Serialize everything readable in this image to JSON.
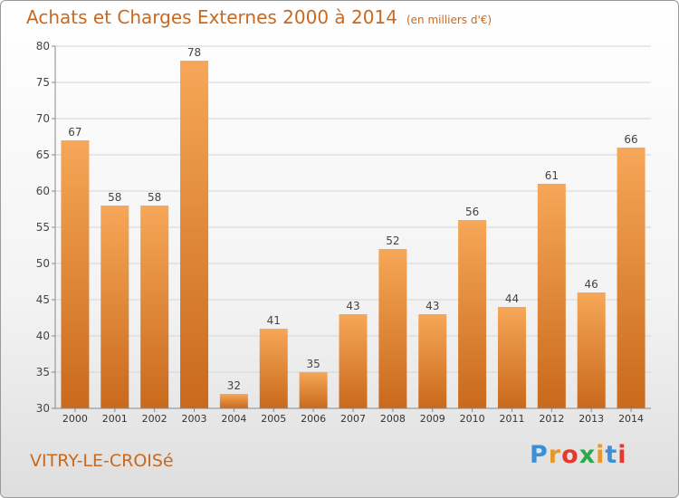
{
  "title": "Achats et Charges Externes 2000 à 2014",
  "unit_note": "(en milliers d'€)",
  "commune": "VITRY-LE-CROISé",
  "logo": {
    "letters": [
      "P",
      "r",
      "o",
      "x",
      "i",
      "t",
      "i"
    ],
    "colors": [
      "#3a8fd6",
      "#e8982a",
      "#e33a2f",
      "#2aa84a",
      "#e8982a",
      "#3a8fd6",
      "#e33a2f"
    ]
  },
  "chart_data": {
    "type": "bar",
    "categories": [
      "2000",
      "2001",
      "2002",
      "2003",
      "2004",
      "2005",
      "2006",
      "2007",
      "2008",
      "2009",
      "2010",
      "2011",
      "2012",
      "2013",
      "2014"
    ],
    "values": [
      67,
      58,
      58,
      78,
      32,
      41,
      35,
      43,
      52,
      43,
      56,
      44,
      61,
      46,
      66
    ],
    "ylim": [
      30,
      80
    ],
    "yticks": [
      30,
      35,
      40,
      45,
      50,
      55,
      60,
      65,
      70,
      75,
      80
    ],
    "grid": true,
    "xlabel": "",
    "ylabel": "",
    "bar_color_top": "#f6a757",
    "bar_color_bottom": "#c9691c"
  }
}
